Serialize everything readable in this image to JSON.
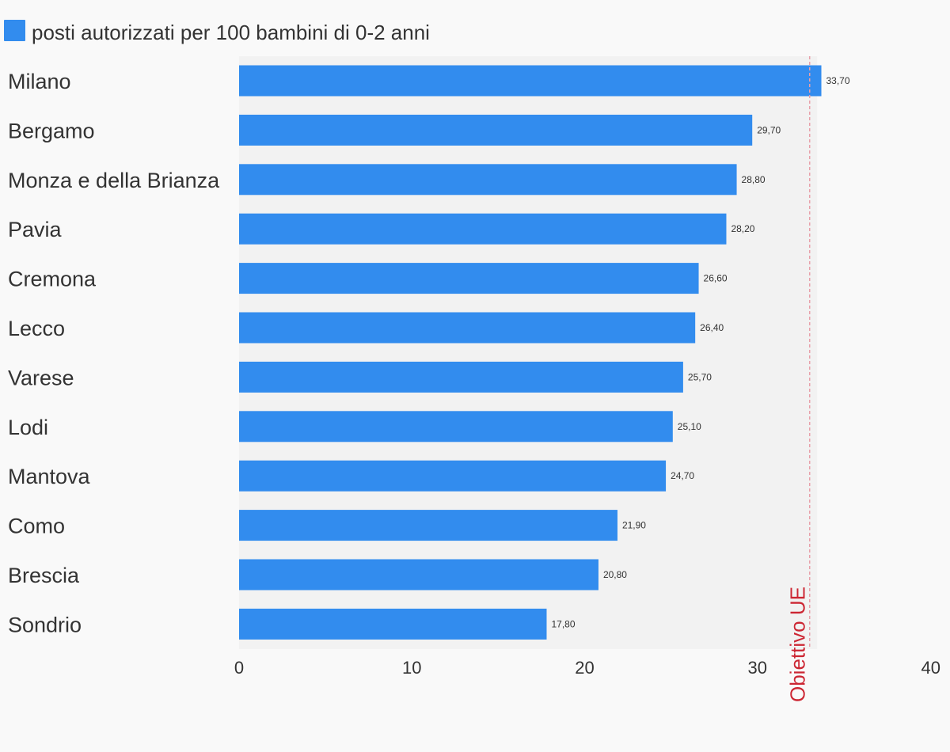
{
  "legend": {
    "label": "posti autorizzati per 100 bambini di 0-2 anni",
    "color": "#328cee"
  },
  "colors": {
    "bar": "#328cee",
    "plot_background": "#f2f2f2",
    "page_background": "#f9f9f9",
    "reference_line": "#e8a0aa",
    "reference_text": "#cc2633"
  },
  "chart_data": {
    "type": "bar",
    "orientation": "horizontal",
    "categories": [
      "Milano",
      "Bergamo",
      "Monza e della Brianza",
      "Pavia",
      "Cremona",
      "Lecco",
      "Varese",
      "Lodi",
      "Mantova",
      "Como",
      "Brescia",
      "Sondrio"
    ],
    "series": [
      {
        "name": "posti autorizzati per 100 bambini di 0-2 anni",
        "values": [
          33.7,
          29.7,
          28.8,
          28.2,
          26.6,
          26.4,
          25.7,
          25.1,
          24.7,
          21.9,
          20.8,
          17.8
        ],
        "data_labels": [
          "33,70",
          "29,70",
          "28,80",
          "28,20",
          "26,60",
          "26,40",
          "25,70",
          "25,10",
          "24,70",
          "21,90",
          "20,80",
          "17,80"
        ]
      }
    ],
    "xlim": [
      0,
      40
    ],
    "x_ticks": [
      0,
      10,
      20,
      30,
      40
    ],
    "x_tick_labels": [
      "0",
      "10",
      "20",
      "30",
      "40"
    ],
    "reference_line": {
      "value": 33,
      "label": "Obiettivo UE",
      "style": "dashed"
    },
    "legend_position": "top-left",
    "grid": false
  }
}
